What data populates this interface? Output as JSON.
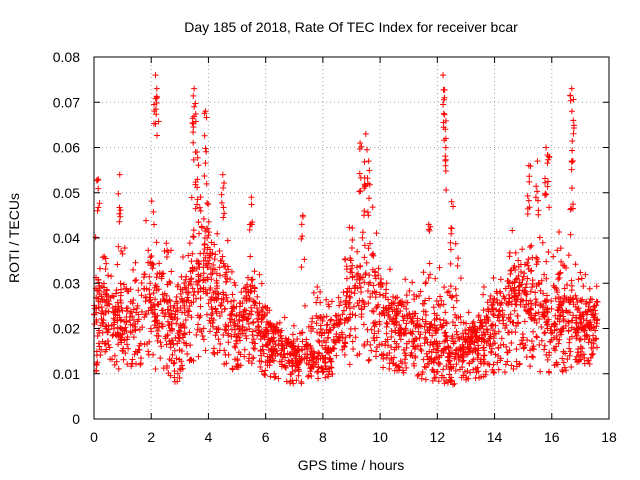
{
  "chart_data": {
    "type": "scatter",
    "title": "Day 185 of 2018, Rate Of TEC Index for receiver bcar",
    "xlabel": "GPS time / hours",
    "ylabel": "ROTI / TECUs",
    "xlim": [
      0,
      18
    ],
    "ylim": [
      0,
      0.08
    ],
    "xticks": [
      0,
      2,
      4,
      6,
      8,
      10,
      12,
      14,
      16,
      18
    ],
    "xtick_labels": [
      "0",
      "2",
      "4",
      "6",
      "8",
      "10",
      "12",
      "14",
      "16",
      "18"
    ],
    "yticks": [
      0,
      0.01,
      0.02,
      0.03,
      0.04,
      0.05,
      0.06,
      0.07,
      0.08
    ],
    "ytick_labels": [
      "0",
      "0.01",
      "0.02",
      "0.03",
      "0.04",
      "0.05",
      "0.06",
      "0.07",
      "0.08"
    ],
    "grid": true,
    "marker": "+",
    "color": "#ff0000",
    "x_data_range": [
      0,
      17.6
    ],
    "profile": {
      "x": [
        0,
        0.5,
        1,
        1.5,
        2,
        2.5,
        3,
        3.5,
        4,
        4.5,
        5,
        5.5,
        6,
        6.5,
        7,
        7.5,
        8,
        8.5,
        9,
        9.5,
        10,
        10.5,
        11,
        11.5,
        12,
        12.5,
        13,
        13.5,
        14,
        14.5,
        15,
        15.5,
        16,
        16.5,
        17,
        17.5
      ],
      "median": [
        0.02,
        0.019,
        0.017,
        0.02,
        0.024,
        0.018,
        0.016,
        0.024,
        0.028,
        0.02,
        0.016,
        0.022,
        0.016,
        0.014,
        0.012,
        0.013,
        0.013,
        0.016,
        0.022,
        0.025,
        0.021,
        0.019,
        0.017,
        0.016,
        0.014,
        0.013,
        0.014,
        0.015,
        0.018,
        0.02,
        0.023,
        0.021,
        0.017,
        0.019,
        0.017,
        0.02
      ],
      "upper": [
        0.042,
        0.034,
        0.04,
        0.035,
        0.05,
        0.044,
        0.03,
        0.06,
        0.055,
        0.052,
        0.03,
        0.042,
        0.026,
        0.024,
        0.022,
        0.028,
        0.03,
        0.026,
        0.048,
        0.055,
        0.04,
        0.035,
        0.03,
        0.033,
        0.032,
        0.045,
        0.025,
        0.028,
        0.036,
        0.04,
        0.048,
        0.045,
        0.036,
        0.048,
        0.033,
        0.03
      ],
      "lower": [
        0.008,
        0.01,
        0.009,
        0.01,
        0.008,
        0.008,
        0.005,
        0.01,
        0.012,
        0.01,
        0.008,
        0.008,
        0.008,
        0.007,
        0.006,
        0.007,
        0.008,
        0.008,
        0.01,
        0.01,
        0.009,
        0.008,
        0.008,
        0.007,
        0.006,
        0.006,
        0.007,
        0.007,
        0.008,
        0.008,
        0.009,
        0.008,
        0.008,
        0.008,
        0.008,
        0.01
      ]
    },
    "peaks": [
      {
        "x": 2.15,
        "y": 0.076
      },
      {
        "x": 2.2,
        "y": 0.071
      },
      {
        "x": 3.5,
        "y": 0.073
      },
      {
        "x": 3.5,
        "y": 0.069
      },
      {
        "x": 3.6,
        "y": 0.059
      },
      {
        "x": 3.9,
        "y": 0.068
      },
      {
        "x": 4.5,
        "y": 0.054
      },
      {
        "x": 0.9,
        "y": 0.054
      },
      {
        "x": 0.15,
        "y": 0.053
      },
      {
        "x": 9.5,
        "y": 0.063
      },
      {
        "x": 9.3,
        "y": 0.061
      },
      {
        "x": 9.6,
        "y": 0.057
      },
      {
        "x": 12.2,
        "y": 0.076
      },
      {
        "x": 12.25,
        "y": 0.071
      },
      {
        "x": 12.3,
        "y": 0.062
      },
      {
        "x": 12.5,
        "y": 0.048
      },
      {
        "x": 15.2,
        "y": 0.056
      },
      {
        "x": 15.5,
        "y": 0.057
      },
      {
        "x": 15.8,
        "y": 0.06
      },
      {
        "x": 15.9,
        "y": 0.058
      },
      {
        "x": 16.7,
        "y": 0.073
      },
      {
        "x": 16.75,
        "y": 0.066
      },
      {
        "x": 16.7,
        "y": 0.057
      },
      {
        "x": 7.3,
        "y": 0.045
      },
      {
        "x": 5.5,
        "y": 0.049
      },
      {
        "x": 11.7,
        "y": 0.043
      }
    ]
  }
}
